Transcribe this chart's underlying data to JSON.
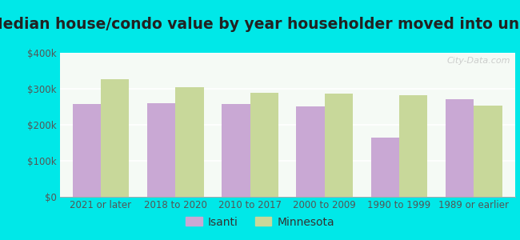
{
  "title": "Median house/condo value by year householder moved into unit",
  "categories": [
    "2021 or later",
    "2018 to 2020",
    "2010 to 2017",
    "2000 to 2009",
    "1990 to 1999",
    "1989 or earlier"
  ],
  "isanti_values": [
    258000,
    260000,
    258000,
    252000,
    165000,
    272000
  ],
  "minnesota_values": [
    327000,
    305000,
    288000,
    287000,
    282000,
    254000
  ],
  "isanti_color": "#c9a8d4",
  "minnesota_color": "#c8d89a",
  "background_color": "#00e8e8",
  "plot_bg_top": "#f5faf5",
  "plot_bg_bottom": "#e8f0dc",
  "bar_width": 0.38,
  "ylim": [
    0,
    400000
  ],
  "yticks": [
    0,
    100000,
    200000,
    300000,
    400000
  ],
  "ytick_labels": [
    "$0",
    "$100k",
    "$200k",
    "$300k",
    "$400k"
  ],
  "title_fontsize": 13.5,
  "legend_fontsize": 10,
  "tick_fontsize": 8.5,
  "watermark_text": "City-Data.com"
}
